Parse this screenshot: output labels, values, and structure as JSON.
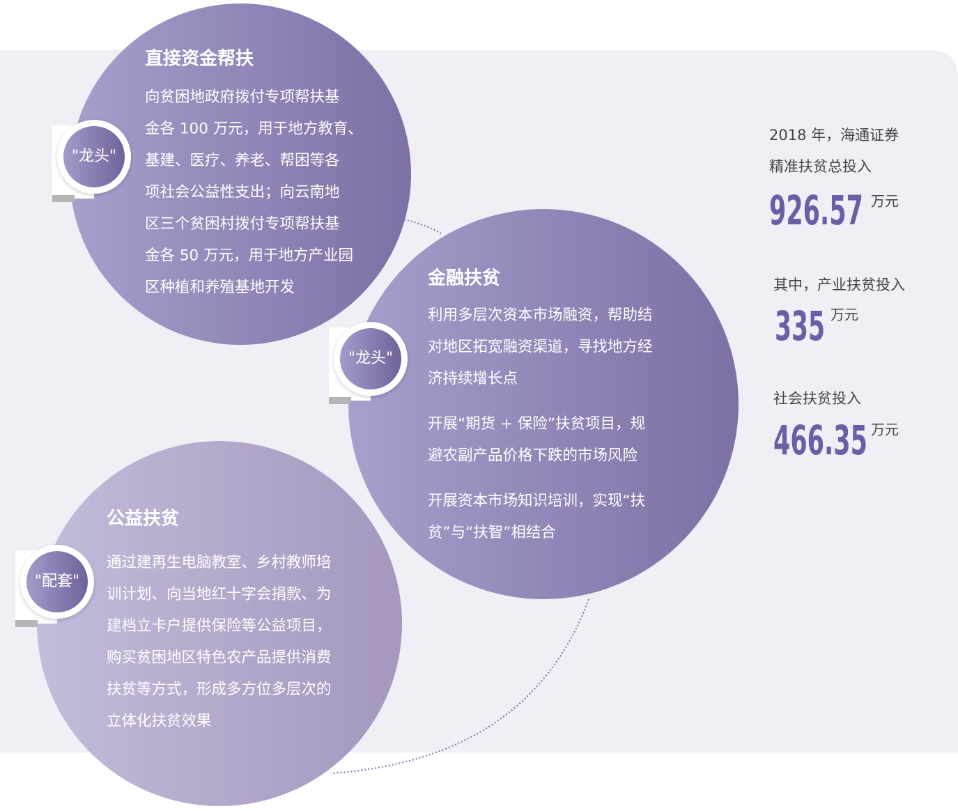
{
  "sections": [
    {
      "title": "直接资金帮扶",
      "badge": "\"龙头\"",
      "paragraphs": [
        [
          "向贫困地政府拨付专项帮扶基",
          "金各 100 万元，用于地方教育、",
          "基建、医疗、养老、帮困等各",
          "项社会公益性支出；向云南地",
          "区三个贫困村拨付专项帮扶基",
          "金各 50 万元，用于地方产业园",
          "区种植和养殖基地开发"
        ]
      ]
    },
    {
      "title": "金融扶贫",
      "badge": "\"龙头\"",
      "paragraphs": [
        [
          "利用多层次资本市场融资，帮助结",
          "对地区拓宽融资渠道，寻找地方经",
          "济持续增长点"
        ],
        [
          "开展“期货 + 保险”扶贫项目，规",
          "避农副产品价格下跌的市场风险"
        ],
        [
          "开展资本市场知识培训，实现“扶",
          "贫”与“扶智”相结合"
        ]
      ]
    },
    {
      "title": "公益扶贫",
      "badge": "\"配套\"",
      "paragraphs": [
        [
          "通过建再生电脑教室、乡村教师培",
          "训计划、向当地红十字会捐款、为",
          "建档立卡户提供保险等公益项目，",
          "购买贫困地区特色农产品提供消费",
          "扶贫等方式，形成多方位多层次的",
          "立体化扶贫效果"
        ]
      ]
    }
  ],
  "stats": {
    "intro": [
      "2018 年，海通证券",
      "精准扶贫总投入"
    ],
    "items": [
      {
        "value": "926.57",
        "unit": "万元"
      },
      {
        "label": "其中，产业扶贫投入",
        "value": "335",
        "unit": "万元"
      },
      {
        "label": "社会扶贫投入",
        "value": "466.35",
        "unit": "万元"
      }
    ]
  }
}
